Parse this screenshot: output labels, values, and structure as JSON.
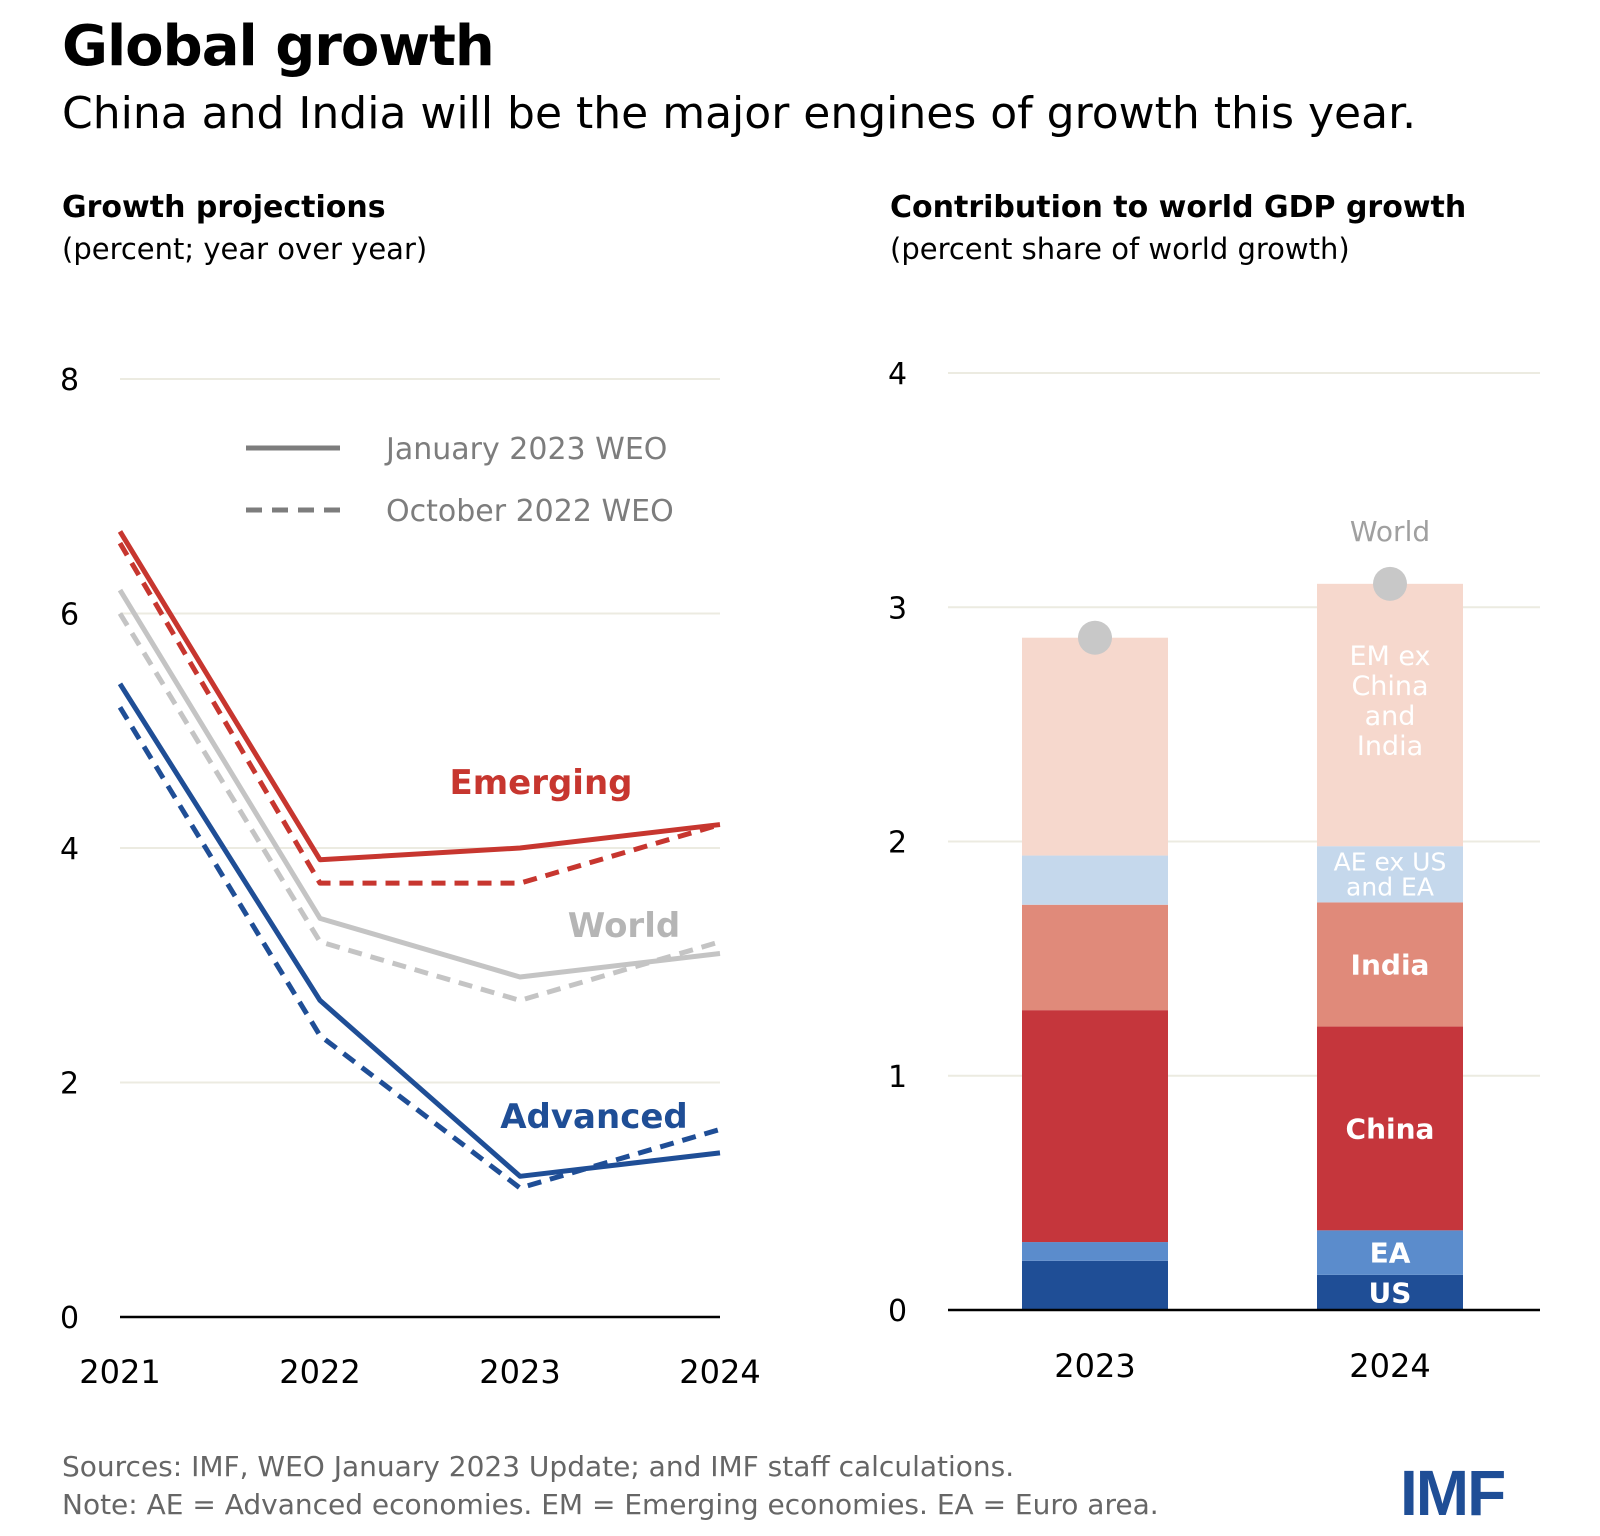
{
  "title": "Global growth",
  "subtitle": "China and India will be the major engines of growth this year.",
  "left_panel": {
    "title": "Growth projections",
    "subtitle": "(percent; year over year)"
  },
  "right_panel": {
    "title": "Contribution to world GDP growth",
    "subtitle": "(percent share of world growth)"
  },
  "footer": {
    "sources": "Sources: IMF, WEO January 2023 Update; and IMF staff calculations.",
    "note": "Note: AE = Advanced economies.  EM = Emerging economies. EA = Euro area."
  },
  "logo": "IMF",
  "colors": {
    "emerging": "#c7362f",
    "world": "#c4c4c4",
    "advanced": "#1f4e96",
    "grid": "#ecebe1",
    "us": "#1f4e96",
    "ea": "#5b8ccc",
    "china": "#c5363c",
    "india": "#e08a7a",
    "ae_ex": "#c5d8ec",
    "em_ex": "#f6d8cd",
    "world_dot": "#c8c8c8"
  },
  "chart_data": [
    {
      "type": "line",
      "title": "Growth projections",
      "ylabel": "(percent; year over year)",
      "x": [
        "2021",
        "2022",
        "2023",
        "2024"
      ],
      "ylim": [
        0,
        8
      ],
      "yticks": [
        0,
        2,
        4,
        6,
        8
      ],
      "legend": [
        {
          "label": "January 2023 WEO",
          "style": "solid"
        },
        {
          "label": "October 2022 WEO",
          "style": "dashed"
        }
      ],
      "legend_position": "top-right",
      "series": [
        {
          "name": "Emerging",
          "label": "Emerging",
          "color_key": "emerging",
          "style": "solid",
          "values": [
            6.7,
            3.9,
            4.0,
            4.2
          ]
        },
        {
          "name": "Emerging",
          "label": "",
          "color_key": "emerging",
          "style": "dashed",
          "values": [
            6.6,
            3.7,
            3.7,
            4.2
          ]
        },
        {
          "name": "World",
          "label": "World",
          "color_key": "world",
          "style": "solid",
          "values": [
            6.2,
            3.4,
            2.9,
            3.1
          ]
        },
        {
          "name": "World",
          "label": "",
          "color_key": "world",
          "style": "dashed",
          "values": [
            6.0,
            3.2,
            2.7,
            3.2
          ]
        },
        {
          "name": "Advanced",
          "label": "Advanced",
          "color_key": "advanced",
          "style": "solid",
          "values": [
            5.4,
            2.7,
            1.2,
            1.4
          ]
        },
        {
          "name": "Advanced",
          "label": "",
          "color_key": "advanced",
          "style": "dashed",
          "values": [
            5.2,
            2.4,
            1.1,
            1.6
          ]
        }
      ],
      "annotations": [
        "Emerging",
        "World",
        "Advanced"
      ]
    },
    {
      "type": "bar",
      "stacked": true,
      "title": "Contribution to world GDP growth",
      "ylabel": "(percent share of world growth)",
      "categories": [
        "2023",
        "2024"
      ],
      "ylim": [
        0,
        4
      ],
      "yticks": [
        0,
        1,
        2,
        3,
        4
      ],
      "series": [
        {
          "name": "US",
          "label": "US",
          "color_key": "us",
          "values": [
            0.21,
            0.15
          ]
        },
        {
          "name": "EA",
          "label": "EA",
          "color_key": "ea",
          "values": [
            0.08,
            0.19
          ]
        },
        {
          "name": "China",
          "label": "China",
          "color_key": "china",
          "values": [
            0.99,
            0.87
          ]
        },
        {
          "name": "India",
          "label": "India",
          "color_key": "india",
          "values": [
            0.45,
            0.53
          ]
        },
        {
          "name": "AE ex US and EA",
          "label": "AE ex US and EA",
          "color_key": "ae_ex",
          "values": [
            0.21,
            0.24
          ]
        },
        {
          "name": "EM ex China and India",
          "label": "EM ex China and India",
          "color_key": "em_ex",
          "values": [
            0.93,
            1.12
          ]
        }
      ],
      "world": {
        "label": "World",
        "values": [
          2.87,
          3.1
        ]
      }
    }
  ]
}
